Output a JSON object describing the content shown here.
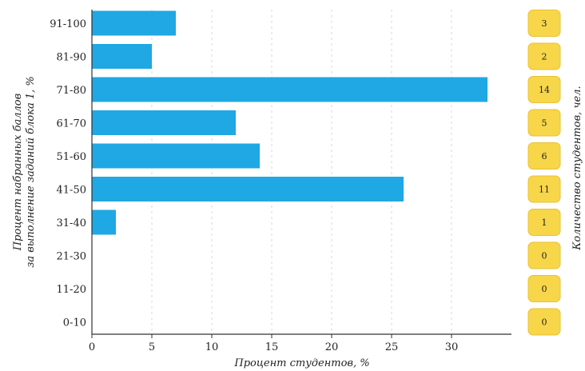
{
  "chart_data": {
    "type": "bar",
    "orientation": "horizontal",
    "categories": [
      "0-10",
      "11-20",
      "21-30",
      "31-40",
      "41-50",
      "51-60",
      "61-70",
      "71-80",
      "81-90",
      "91-100"
    ],
    "values": [
      0,
      0,
      0,
      2,
      26,
      14,
      12,
      33,
      5,
      7
    ],
    "counts": [
      0,
      0,
      0,
      1,
      11,
      6,
      5,
      14,
      2,
      3
    ],
    "xlabel": "Процент студентов, %",
    "ylabel_line1": "Процент набранных баллов",
    "ylabel_line2": "за выполнение заданий блока 1, %",
    "right_label": "Количество студентов, чел.",
    "xlim": [
      0,
      35
    ],
    "xticks": [
      0,
      5,
      10,
      15,
      20,
      25,
      30
    ],
    "grid": "vertical dashed",
    "colors": {
      "bar": "#1fa8e3",
      "badge_fill": "#f7d64a",
      "badge_stroke": "#e8c234"
    }
  }
}
